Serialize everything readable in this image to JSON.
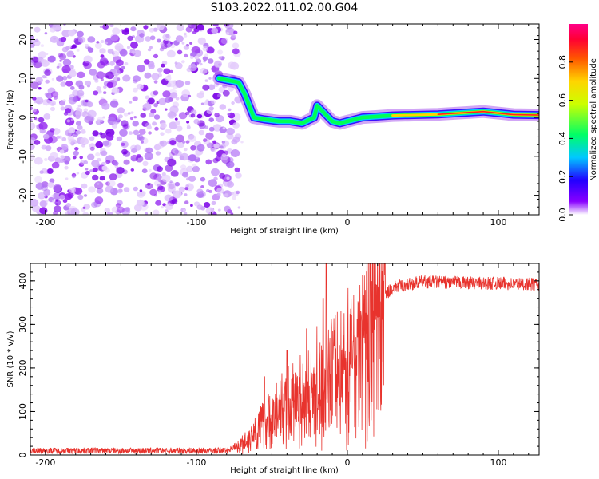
{
  "title": "S103.2022.011.02.00.G04",
  "chart_data": [
    {
      "type": "heatmap",
      "xlabel": "Height of straight line (km)",
      "ylabel": "Frequency (Hz)",
      "xlim": [
        -210,
        127
      ],
      "ylim": [
        -25,
        24
      ],
      "xticks": [
        -200,
        -100,
        0,
        100
      ],
      "yticks": [
        -20,
        -10,
        0,
        10,
        20
      ],
      "noise_region_x": [
        -210,
        -72
      ],
      "ridge": [
        {
          "x": -85,
          "y": 10
        },
        {
          "x": -72,
          "y": 9
        },
        {
          "x": -68,
          "y": 6
        },
        {
          "x": -62,
          "y": 0
        },
        {
          "x": -55,
          "y": -0.5
        },
        {
          "x": -45,
          "y": -1
        },
        {
          "x": -38,
          "y": -1
        },
        {
          "x": -30,
          "y": -1.5
        },
        {
          "x": -22,
          "y": 0
        },
        {
          "x": -20,
          "y": 3
        },
        {
          "x": -15,
          "y": 1
        },
        {
          "x": -10,
          "y": -1
        },
        {
          "x": -5,
          "y": -1.5
        },
        {
          "x": 0,
          "y": -1
        },
        {
          "x": 10,
          "y": 0
        },
        {
          "x": 30,
          "y": 0.5
        },
        {
          "x": 60,
          "y": 0.8
        },
        {
          "x": 90,
          "y": 1.5
        },
        {
          "x": 110,
          "y": 0.7
        },
        {
          "x": 127,
          "y": 0.6
        }
      ],
      "colorbar": {
        "label": "Normalized spectral amplitude",
        "range": [
          0,
          1
        ],
        "ticks": [
          "0.0",
          "0.2",
          "0.4",
          "0.6",
          "0.8"
        ]
      }
    },
    {
      "type": "line",
      "xlabel": "Height of straight line (km)",
      "ylabel": "SNR (10 * v/v)",
      "xlim": [
        -210,
        127
      ],
      "ylim": [
        0,
        440
      ],
      "xticks": [
        -200,
        -100,
        0,
        100
      ],
      "yticks": [
        0,
        100,
        200,
        300,
        400
      ],
      "color": "#e8332d",
      "series_envelope": [
        {
          "x": -210,
          "y": 10
        },
        {
          "x": -80,
          "y": 10
        },
        {
          "x": -70,
          "y": 25
        },
        {
          "x": -60,
          "y": 60
        },
        {
          "x": -40,
          "y": 110
        },
        {
          "x": -20,
          "y": 150
        },
        {
          "x": 0,
          "y": 200
        },
        {
          "x": 10,
          "y": 280
        },
        {
          "x": 20,
          "y": 350
        },
        {
          "x": 30,
          "y": 385
        },
        {
          "x": 50,
          "y": 398
        },
        {
          "x": 127,
          "y": 392
        }
      ],
      "spikes": [
        {
          "x": -14,
          "y": 440
        },
        {
          "x": -16,
          "y": 360
        },
        {
          "x": -27,
          "y": 290
        },
        {
          "x": -40,
          "y": 240
        },
        {
          "x": -55,
          "y": 180
        }
      ]
    }
  ]
}
